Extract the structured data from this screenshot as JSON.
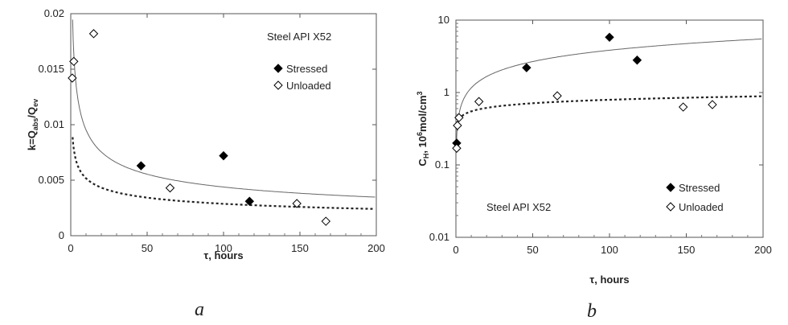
{
  "chart_data": [
    {
      "type": "scatter",
      "panel_label": "a",
      "annotation": "Steel API X52",
      "xlabel": "τ, hours",
      "ylabel": "k=Q",
      "ylabel_sub1": "abs",
      "ylabel_mid": "/Q",
      "ylabel_sub2": "ev",
      "xlim": [
        0,
        200
      ],
      "ylim": [
        0,
        0.02
      ],
      "x_ticks": [
        "0",
        "50",
        "100",
        "150",
        "200"
      ],
      "y_ticks": [
        "0",
        "0.005",
        "0.01",
        "0.015",
        "0.02"
      ],
      "legend_position": "top-right",
      "series": [
        {
          "name": "Stressed",
          "marker": "filled-diamond",
          "points": [
            [
              46,
              0.0063
            ],
            [
              100,
              0.0072
            ],
            [
              117,
              0.0031
            ]
          ],
          "fit": {
            "style": "solid",
            "a": 0.0207,
            "b": -0.337
          }
        },
        {
          "name": "Unloaded",
          "marker": "open-diamond",
          "points": [
            [
              1,
              0.0142
            ],
            [
              2,
              0.0157
            ],
            [
              15,
              0.0182
            ],
            [
              65,
              0.0043
            ],
            [
              148,
              0.0029
            ],
            [
              167,
              0.0013
            ]
          ],
          "fit": {
            "style": "dotted",
            "a": 0.0093,
            "b": -0.255
          }
        }
      ]
    },
    {
      "type": "scatter",
      "panel_label": "b",
      "annotation": "Steel API X52",
      "xlabel": "τ, hours",
      "ylabel_main": "C",
      "ylabel_sub": "H",
      "ylabel_rest": ", 10",
      "ylabel_sup1": "6",
      "ylabel_unit": "mol/cm",
      "ylabel_sup2": "3",
      "xlim": [
        0,
        200
      ],
      "ylim": [
        0.01,
        10
      ],
      "yscale": "log",
      "x_ticks": [
        "0",
        "50",
        "100",
        "150",
        "200"
      ],
      "y_ticks": [
        "0.01",
        "0.1",
        "1",
        "10"
      ],
      "legend_position": "bottom-right",
      "series": [
        {
          "name": "Stressed",
          "marker": "filled-diamond",
          "points": [
            [
              0.5,
              0.2
            ],
            [
              46,
              2.2
            ],
            [
              100,
              5.8
            ],
            [
              118,
              2.8
            ]
          ],
          "fit": {
            "style": "solid",
            "a": 0.35,
            "b": 0.52
          }
        },
        {
          "name": "Unloaded",
          "marker": "open-diamond",
          "points": [
            [
              0.5,
              0.17
            ],
            [
              1,
              0.35
            ],
            [
              2,
              0.45
            ],
            [
              15,
              0.75
            ],
            [
              66,
              0.9
            ],
            [
              148,
              0.63
            ],
            [
              167,
              0.68
            ]
          ],
          "fit": {
            "style": "dotted",
            "a": 0.38,
            "b": 0.16
          }
        }
      ]
    }
  ]
}
